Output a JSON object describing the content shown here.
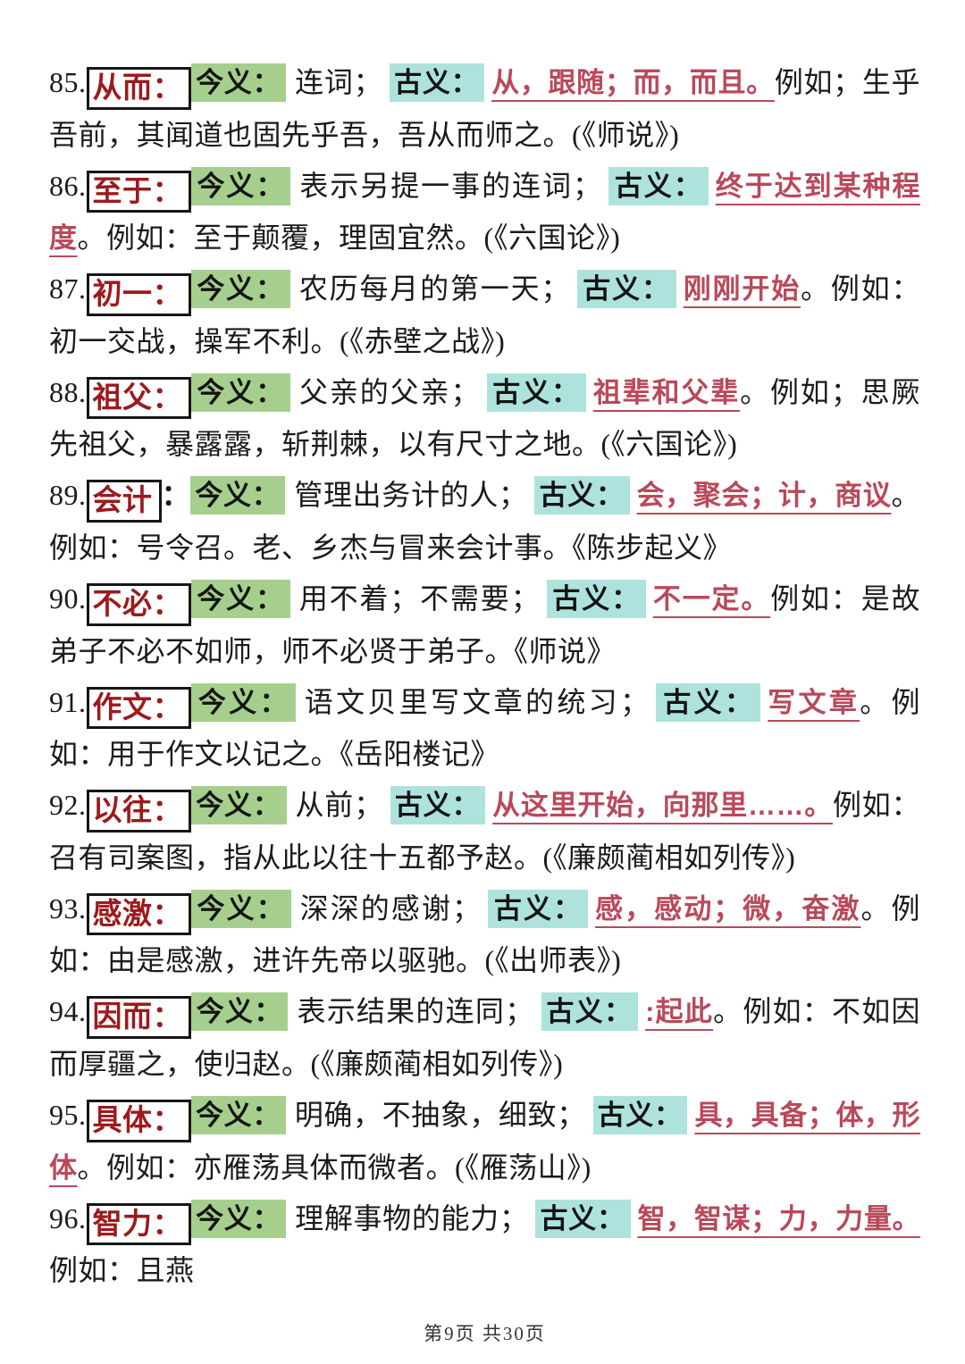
{
  "page": {
    "footer": "第9页 共30页"
  },
  "labels": {
    "jinyi": "今义：",
    "guyi": "古义："
  },
  "colors": {
    "term_red": "#9c1a1d",
    "ancient_red": "#b9495a",
    "modern_highlight_green": "#a6cf8e",
    "ancient_highlight_cyan": "#aee3dd"
  },
  "entries": [
    {
      "num": "85.",
      "term": "从而：",
      "term_suffix": "",
      "modern": "连词；",
      "ancient": "从，跟随；而，而且。",
      "rest": "例如；生乎吾前，其闻道也固先乎吾，吾从而师之。(《师说》)"
    },
    {
      "num": "86.",
      "term": "至于：",
      "term_suffix": "",
      "modern": "表示另提一事的连词；",
      "ancient": "终于达到某种程度",
      "rest": "。例如：至于颠覆，理固宜然。(《六国论》)"
    },
    {
      "num": "87.",
      "term": "初一：",
      "term_suffix": "",
      "modern": "农历每月的第一天；",
      "ancient": "刚刚开始",
      "rest": "。例如：初一交战，操军不利。(《赤壁之战》)"
    },
    {
      "num": "88.",
      "term": "祖父：",
      "term_suffix": "",
      "modern": "父亲的父亲；",
      "ancient": "祖辈和父辈",
      "rest": "。例如；思厥先祖父，暴露露，斩荆棘，以有尺寸之地。(《六国论》)"
    },
    {
      "num": "89.",
      "term": "会计",
      "term_suffix": "：",
      "modern": "管理出务计的人；",
      "ancient": "会，聚会；计，商议",
      "rest": "。例如：号令召。老、乡杰与冒来会计事。《陈步起义》"
    },
    {
      "num": "90.",
      "term": "不必：",
      "term_suffix": "",
      "modern": "用不着；不需要；",
      "ancient": "不一定。",
      "rest": "例如：是故弟子不必不如师，师不必贤于弟子。《师说》"
    },
    {
      "num": "91.",
      "term": "作文：",
      "term_suffix": "",
      "modern": "语文贝里写文章的统习；",
      "ancient": "写文章",
      "rest": "。例如：用于作文以记之。《岳阳楼记》"
    },
    {
      "num": "92.",
      "term": "以往：",
      "term_suffix": "",
      "modern": "从前；",
      "ancient": "从这里开始，向那里……。",
      "rest": "例如：召有司案图，指从此以往十五都予赵。(《廉颇蔺相如列传》)"
    },
    {
      "num": "93.",
      "term": "感激：",
      "term_suffix": "",
      "modern": "深深的感谢；",
      "ancient": "感，感动；微，奋激",
      "rest": "。例如：由是感激，进许先帝以驱驰。(《出师表》)"
    },
    {
      "num": "94.",
      "term": "因而：",
      "term_suffix": "",
      "modern": "表示结果的连同；",
      "ancient": ":起此",
      "rest": "。例如：不如因而厚疆之，使归赵。(《廉颇蔺相如列传》)"
    },
    {
      "num": "95.",
      "term": "具体：",
      "term_suffix": "",
      "modern": "明确，不抽象，细致；",
      "ancient": "具，具备；体，形体",
      "rest": "。例如：亦雁荡具体而微者。(《雁荡山》)"
    },
    {
      "num": "96.",
      "term": "智力：",
      "term_suffix": "",
      "modern": "理解事物的能力；",
      "ancient": "智，智谋；力，力量。",
      "rest": "例如：且燕"
    }
  ]
}
